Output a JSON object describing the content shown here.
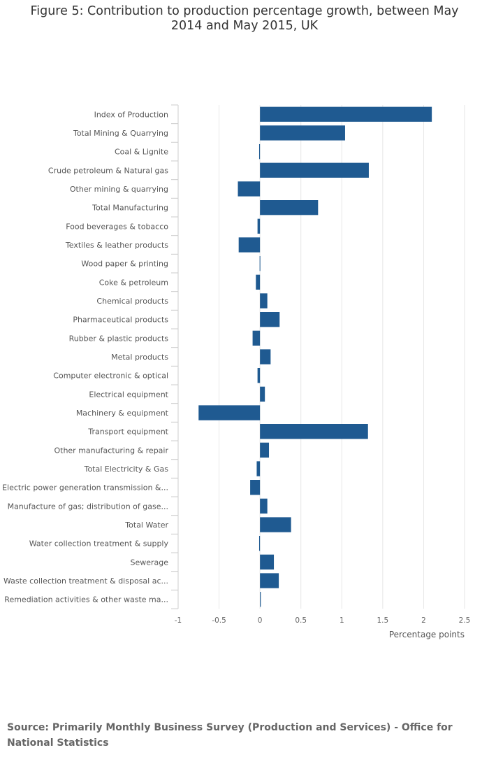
{
  "chart_data": {
    "type": "bar",
    "orientation": "horizontal",
    "title": "Figure 5: Contribution to production percentage growth, between May 2014 and May 2015, UK",
    "xlabel": "Percentage points",
    "ylabel": "",
    "xlim": [
      -1,
      2.5
    ],
    "xticks": [
      -1,
      -0.5,
      0,
      0.5,
      1,
      1.5,
      2,
      2.5
    ],
    "xtick_labels": [
      "-1",
      "-0.5",
      "0",
      "0.5",
      "1",
      "1.5",
      "2",
      "2.5"
    ],
    "bar_color": "#1f5a91",
    "grid": true,
    "categories": [
      "Index of Production",
      "Total Mining & Quarrying",
      "Coal & Lignite",
      "Crude petroleum & Natural gas",
      "Other mining & quarrying",
      "Total Manufacturing",
      "Food beverages & tobacco",
      "Textiles & leather products",
      "Wood paper & printing",
      "Coke & petroleum",
      "Chemical products",
      "Pharmaceutical products",
      "Rubber & plastic products",
      "Metal products",
      "Computer electronic & optical",
      "Electrical equipment",
      "Machinery & equipment",
      "Transport equipment",
      "Other manufacturing & repair",
      "Total Electricity & Gas",
      "Electric power generation transmission &...",
      "Manufacture of gas; distribution of gase...",
      "Total Water",
      "Water collection treatment & supply",
      "Sewerage",
      "Waste collection treatment & disposal ac...",
      "Remediation activities & other waste ma..."
    ],
    "values": [
      2.1,
      1.04,
      -0.01,
      1.33,
      -0.27,
      0.71,
      -0.03,
      -0.26,
      0.0,
      -0.05,
      0.09,
      0.24,
      -0.09,
      0.13,
      -0.03,
      0.06,
      -0.75,
      1.32,
      0.11,
      -0.04,
      -0.12,
      0.09,
      0.38,
      -0.01,
      0.17,
      0.23,
      0.01
    ]
  },
  "source": "Source: Primarily Monthly Business Survey (Production and Services) - Office for National Statistics"
}
